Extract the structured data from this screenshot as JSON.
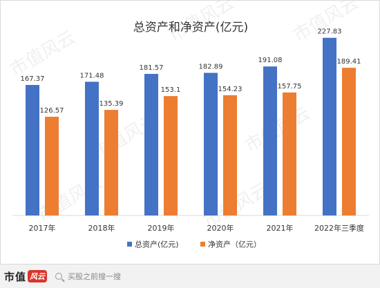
{
  "chart_data": {
    "type": "bar",
    "title": "总资产和净资产(亿元)",
    "categories": [
      "2017年",
      "2018年",
      "2019年",
      "2020年",
      "2021年",
      "2022年三季度"
    ],
    "series": [
      {
        "name": "总资产(亿元)",
        "color": "#4472c4",
        "values": [
          167.37,
          171.48,
          181.57,
          182.89,
          191.08,
          227.83
        ],
        "labels": [
          "167.37",
          "171.48",
          "181.57",
          "182.89",
          "191.08",
          "227.83"
        ]
      },
      {
        "name": "净资产（亿元）",
        "color": "#ed7d31",
        "values": [
          126.57,
          135.39,
          153.1,
          154.23,
          157.75,
          189.41
        ],
        "labels": [
          "126.57",
          "135.39",
          "153.1",
          "154.23",
          "157.75",
          "189.41"
        ]
      }
    ],
    "ylim": [
      0,
      240
    ],
    "grid": false,
    "legend": "bottom"
  },
  "watermark": {
    "text": "市值风云"
  },
  "footer": {
    "brand": "市值",
    "logo": "风云",
    "search_icon": "search-icon",
    "search_text": "买股之前搜一搜"
  }
}
